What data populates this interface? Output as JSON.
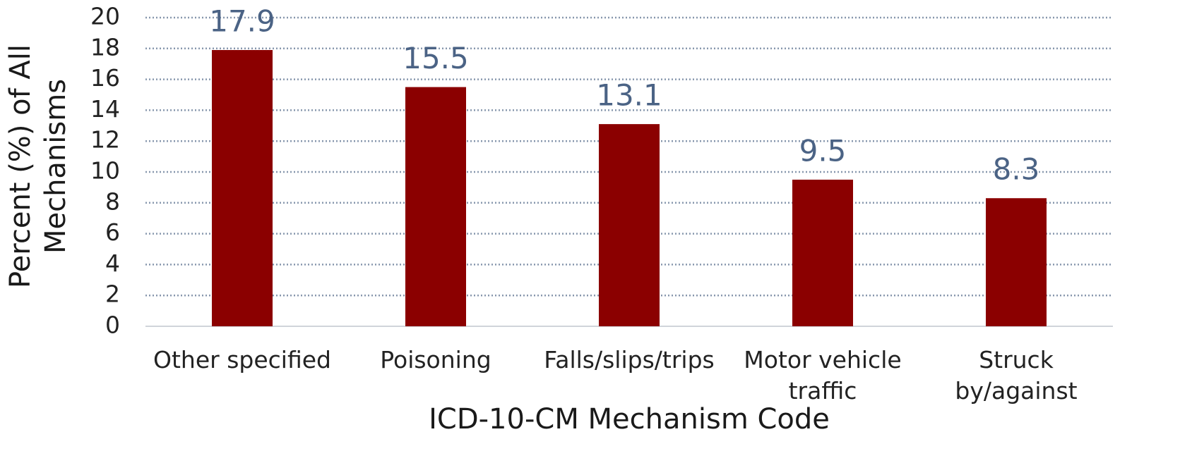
{
  "chart_data": {
    "type": "bar",
    "xlabel": "ICD-10-CM Mechanism Code",
    "ylabel": "Percent (%) of All Mechanisms",
    "categories": [
      "Other specified",
      "Poisoning",
      "Falls/slips/trips",
      "Motor vehicle traffic",
      "Struck by/against"
    ],
    "values": [
      17.9,
      15.5,
      13.1,
      9.5,
      8.3
    ],
    "color": "#8b0000",
    "label_color": "#4b6385",
    "ylim": [
      0,
      20
    ],
    "yticks": [
      0,
      2,
      4,
      6,
      8,
      10,
      12,
      14,
      16,
      18,
      20
    ],
    "grid": true
  }
}
